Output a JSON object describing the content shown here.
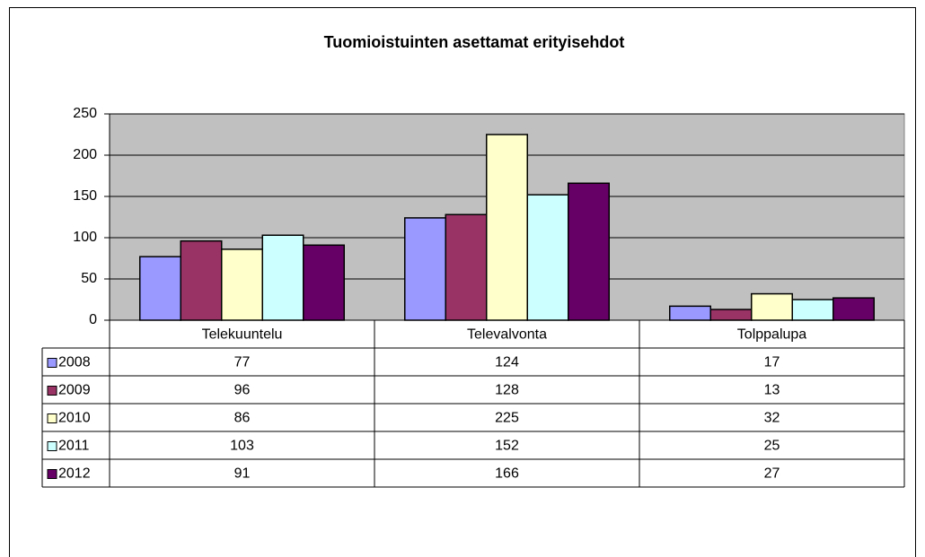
{
  "chart_data": {
    "type": "bar",
    "title": "Tuomioistuinten asettamat erityisehdot",
    "categories": [
      "Telekuuntelu",
      "Televalvonta",
      "Tolppalupa"
    ],
    "series": [
      {
        "name": "2008",
        "color": "#9999ff",
        "values": [
          77,
          124,
          17
        ]
      },
      {
        "name": "2009",
        "color": "#993366",
        "values": [
          96,
          128,
          13
        ]
      },
      {
        "name": "2010",
        "color": "#ffffcc",
        "values": [
          86,
          225,
          32
        ]
      },
      {
        "name": "2011",
        "color": "#ccffff",
        "values": [
          103,
          152,
          25
        ]
      },
      {
        "name": "2012",
        "color": "#660066",
        "values": [
          91,
          166,
          27
        ]
      }
    ],
    "ylim": [
      0,
      250
    ],
    "yticks": [
      0,
      50,
      100,
      150,
      200,
      250
    ],
    "grid": true
  }
}
